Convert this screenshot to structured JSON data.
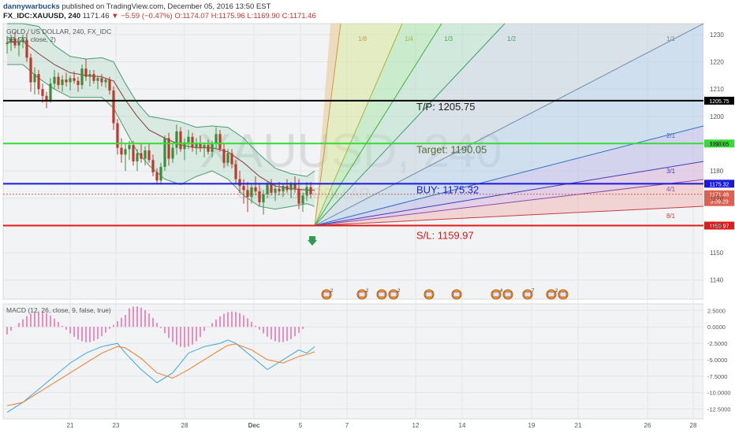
{
  "header": {
    "author": "dannywarbucks",
    "published_text": "published on TradingView.com, December 05, 2016 13:50 EST",
    "symbol": "FX_IDC:XAUUSD, 240",
    "last": "1171.46",
    "change": "−5.59 (−0.47%)",
    "ohlc_o": "O:1174.07",
    "ohlc_h": "H:1175.96",
    "ohlc_l": "L:1169.90",
    "ohlc_c": "C:1171.46"
  },
  "legend": {
    "main": "GOLD / US DOLLAR, 240, FX_IDC",
    "bb": "BB (20, close, 2)",
    "macd": "MACD (12, 26, close, 9, false, true)"
  },
  "watermark": {
    "symbol": "XAUUSD, 240",
    "name": "GOLD / US DOLLAR"
  },
  "colors": {
    "up": "#3a8d3a",
    "down": "#c0392b",
    "tp_line": "#000000",
    "target_line": "#33dd33",
    "buy_line": "#1a1adf",
    "sl_line": "#e31a1a",
    "macd_line": "#3ba6e8",
    "signal_line": "#f27d27",
    "histogram": "#e5479a",
    "bb": "#4a9a70"
  },
  "chart_data": [
    {
      "type": "candlestick",
      "name": "GOLD / US DOLLAR, 240, FX_IDC",
      "ylim": [
        1133,
        1234
      ],
      "y_ticks": [
        1140,
        1150,
        1160,
        1170,
        1180,
        1190,
        1200,
        1210,
        1220,
        1230
      ],
      "x_ticks": [
        "21",
        "23",
        "28",
        "Dec",
        "5",
        "7",
        "12",
        "14",
        "19",
        "21",
        "26",
        "28"
      ],
      "candles": [
        [
          1226.5,
          1229.5,
          1223,
          1227
        ],
        [
          1227,
          1230,
          1224,
          1228.5
        ],
        [
          1228.5,
          1231,
          1225,
          1226
        ],
        [
          1226,
          1229,
          1222,
          1227.5
        ],
        [
          1227.5,
          1230,
          1225,
          1228
        ],
        [
          1228,
          1230.5,
          1220,
          1221.5
        ],
        [
          1221.5,
          1223,
          1209,
          1212.5
        ],
        [
          1212.5,
          1218,
          1208,
          1215.5
        ],
        [
          1215.5,
          1217,
          1208,
          1210
        ],
        [
          1210,
          1212,
          1205,
          1207.5
        ],
        [
          1207.5,
          1209,
          1203,
          1206
        ],
        [
          1206,
          1214,
          1205,
          1212
        ],
        [
          1212,
          1217,
          1210,
          1214.5
        ],
        [
          1214.5,
          1216,
          1210,
          1211.5
        ],
        [
          1211.5,
          1215,
          1209,
          1213.5
        ],
        [
          1213.5,
          1216,
          1211,
          1212.5
        ],
        [
          1212.5,
          1215,
          1209.5,
          1214
        ],
        [
          1214,
          1216.5,
          1212,
          1213
        ],
        [
          1213,
          1214.5,
          1209,
          1211.5
        ],
        [
          1211.5,
          1219,
          1210,
          1217.5
        ],
        [
          1217.5,
          1221,
          1213,
          1214.5
        ],
        [
          1214.5,
          1217,
          1211,
          1215.5
        ],
        [
          1215.5,
          1217,
          1212,
          1213
        ],
        [
          1213,
          1215,
          1210,
          1214
        ],
        [
          1214,
          1215.5,
          1211,
          1212.5
        ],
        [
          1212.5,
          1214,
          1210.5,
          1213.5
        ],
        [
          1213.5,
          1214.5,
          1208,
          1209.5
        ],
        [
          1209.5,
          1211,
          1195,
          1197.5
        ],
        [
          1197.5,
          1199,
          1186,
          1188.5
        ],
        [
          1188.5,
          1192,
          1183,
          1186
        ],
        [
          1186,
          1190,
          1180,
          1188
        ],
        [
          1188,
          1191,
          1184,
          1189.5
        ],
        [
          1189.5,
          1191,
          1182,
          1183.5
        ],
        [
          1183.5,
          1188,
          1180,
          1186.5
        ],
        [
          1186.5,
          1190,
          1183,
          1184.5
        ],
        [
          1184.5,
          1189,
          1182,
          1187.5
        ],
        [
          1187.5,
          1190,
          1183,
          1184
        ],
        [
          1184,
          1186,
          1178,
          1179.5
        ],
        [
          1179.5,
          1181,
          1175,
          1176.5
        ],
        [
          1176.5,
          1183,
          1175,
          1181.5
        ],
        [
          1181.5,
          1193,
          1180,
          1192
        ],
        [
          1192,
          1194,
          1182,
          1184.5
        ],
        [
          1184.5,
          1190,
          1183,
          1188.5
        ],
        [
          1188.5,
          1197,
          1186,
          1194.5
        ],
        [
          1194.5,
          1196,
          1187,
          1188
        ],
        [
          1188,
          1192,
          1184,
          1190.5
        ],
        [
          1190.5,
          1195,
          1188,
          1192.5
        ],
        [
          1192.5,
          1194,
          1187,
          1188.5
        ],
        [
          1188.5,
          1192,
          1186,
          1190
        ],
        [
          1190,
          1193,
          1187,
          1188.5
        ],
        [
          1188.5,
          1190.5,
          1185,
          1189.5
        ],
        [
          1189.5,
          1191.5,
          1186,
          1187
        ],
        [
          1187,
          1191,
          1185,
          1190
        ],
        [
          1190,
          1196,
          1188,
          1193.5
        ],
        [
          1193.5,
          1195,
          1187,
          1188
        ],
        [
          1188,
          1190,
          1181,
          1183
        ],
        [
          1183,
          1188,
          1182,
          1186.5
        ],
        [
          1186.5,
          1188,
          1181,
          1182.5
        ],
        [
          1182.5,
          1184,
          1175,
          1177
        ],
        [
          1177,
          1180,
          1172,
          1174.5
        ],
        [
          1174.5,
          1177,
          1168,
          1173
        ],
        [
          1173,
          1176,
          1165,
          1170.5
        ],
        [
          1170.5,
          1175,
          1168,
          1174
        ],
        [
          1174,
          1178,
          1171,
          1172.5
        ],
        [
          1172.5,
          1175,
          1167,
          1168.5
        ],
        [
          1168.5,
          1173,
          1164,
          1171.5
        ],
        [
          1171.5,
          1176,
          1170,
          1175
        ],
        [
          1175,
          1177,
          1171,
          1172
        ],
        [
          1172,
          1175,
          1169,
          1173.5
        ],
        [
          1173.5,
          1176,
          1171,
          1172.5
        ],
        [
          1172.5,
          1175.5,
          1170.5,
          1174.5
        ],
        [
          1174.5,
          1177,
          1172,
          1173
        ],
        [
          1173,
          1176,
          1170,
          1175.5
        ],
        [
          1175.5,
          1178,
          1172,
          1173.5
        ],
        [
          1173.5,
          1177,
          1166,
          1168
        ],
        [
          1168,
          1172,
          1165,
          1171
        ],
        [
          1171,
          1176,
          1169,
          1174.07
        ],
        [
          1174.07,
          1175.96,
          1169.9,
          1171.46
        ]
      ],
      "bollinger_upper": [
        [
          0,
          1234
        ],
        [
          4,
          1234
        ],
        [
          8,
          1233
        ],
        [
          12,
          1226
        ],
        [
          16,
          1222
        ],
        [
          20,
          1221
        ],
        [
          24,
          1221.5
        ],
        [
          27,
          1220
        ],
        [
          30,
          1212
        ],
        [
          33,
          1205
        ],
        [
          36,
          1200
        ],
        [
          40,
          1199
        ],
        [
          44,
          1198
        ],
        [
          48,
          1196
        ],
        [
          52,
          1196.5
        ],
        [
          56,
          1196
        ],
        [
          60,
          1192
        ],
        [
          64,
          1186
        ],
        [
          68,
          1181
        ],
        [
          72,
          1179
        ],
        [
          76,
          1178
        ],
        [
          78,
          1180
        ]
      ],
      "bollinger_middle": [
        [
          0,
          1227
        ],
        [
          4,
          1227.5
        ],
        [
          8,
          1223
        ],
        [
          12,
          1219
        ],
        [
          16,
          1216
        ],
        [
          20,
          1215
        ],
        [
          24,
          1214.5
        ],
        [
          27,
          1213
        ],
        [
          30,
          1206
        ],
        [
          33,
          1200
        ],
        [
          36,
          1195
        ],
        [
          40,
          1192
        ],
        [
          44,
          1189.5
        ],
        [
          48,
          1188.5
        ],
        [
          52,
          1188.5
        ],
        [
          56,
          1187
        ],
        [
          60,
          1183
        ],
        [
          64,
          1178
        ],
        [
          68,
          1174.5
        ],
        [
          72,
          1173.5
        ],
        [
          76,
          1173
        ],
        [
          78,
          1173
        ]
      ],
      "bollinger_lower": [
        [
          0,
          1219
        ],
        [
          4,
          1219
        ],
        [
          8,
          1214
        ],
        [
          12,
          1210
        ],
        [
          16,
          1207
        ],
        [
          20,
          1207
        ],
        [
          24,
          1207
        ],
        [
          27,
          1203
        ],
        [
          30,
          1195
        ],
        [
          33,
          1187
        ],
        [
          36,
          1182
        ],
        [
          40,
          1177
        ],
        [
          44,
          1175
        ],
        [
          48,
          1178
        ],
        [
          52,
          1180
        ],
        [
          56,
          1177
        ],
        [
          60,
          1171
        ],
        [
          64,
          1167
        ],
        [
          68,
          1166
        ],
        [
          72,
          1167
        ],
        [
          76,
          1168
        ],
        [
          78,
          1167
        ]
      ],
      "levels": [
        {
          "label": "T/P: 1205.75",
          "value": 1205.75,
          "axis_label": "1205.75",
          "color": "#000000"
        },
        {
          "label": "Target: 1190.05",
          "value": 1190.05,
          "axis_label": "1190.05",
          "color": "#33dd33"
        },
        {
          "label": "BUY: 1175.32",
          "value": 1175.32,
          "axis_label": "1175.32",
          "color": "#1a1adf"
        },
        {
          "label": "S/L: 1159.97",
          "value": 1159.97,
          "axis_label": "1159.97",
          "color": "#e31a1a"
        }
      ],
      "price_marker": {
        "value": 1171.46,
        "label": "1171.46",
        "countdown": "3:09:29"
      },
      "gann_fan": {
        "origin_bar": 78,
        "origin_price": 1159.97,
        "lines": [
          {
            "label": "1/8",
            "color": "#c79a4a"
          },
          {
            "label": "1/4",
            "color": "#a6b83a"
          },
          {
            "label": "1/3",
            "color": "#3fb13f"
          },
          {
            "label": "1/2",
            "color": "#3a9e6a"
          },
          {
            "label": "1/1",
            "color": "#6f8ca6"
          },
          {
            "label": "2/1",
            "color": "#2d6fc4"
          },
          {
            "label": "3/1",
            "color": "#3d3db5"
          },
          {
            "label": "4/1",
            "color": "#8a4aa6"
          },
          {
            "label": "8/1",
            "color": "#c24040"
          }
        ]
      }
    },
    {
      "type": "macd",
      "name": "MACD (12, 26, close, 9, false, true)",
      "ylim": [
        -14,
        3.5
      ],
      "y_ticks": [
        "2.5000",
        "0.0000",
        "-2.5000",
        "-5.0000",
        "-7.5000",
        "-10.0000",
        "-12.5000"
      ],
      "macd": [
        [
          0,
          -13
        ],
        [
          4,
          -11.5
        ],
        [
          8,
          -9.5
        ],
        [
          12,
          -7.5
        ],
        [
          16,
          -5.5
        ],
        [
          20,
          -4
        ],
        [
          24,
          -3
        ],
        [
          28,
          -2.5
        ],
        [
          30,
          -4
        ],
        [
          34,
          -6.5
        ],
        [
          38,
          -8.5
        ],
        [
          42,
          -7
        ],
        [
          46,
          -4
        ],
        [
          50,
          -3
        ],
        [
          54,
          -2.5
        ],
        [
          56,
          -2
        ],
        [
          58,
          -2.5
        ],
        [
          62,
          -4.5
        ],
        [
          66,
          -6.5
        ],
        [
          70,
          -5
        ],
        [
          74,
          -3.5
        ],
        [
          76,
          -4
        ],
        [
          78,
          -3
        ]
      ],
      "signal": [
        [
          0,
          -12
        ],
        [
          4,
          -11.5
        ],
        [
          8,
          -10
        ],
        [
          12,
          -8.5
        ],
        [
          16,
          -7
        ],
        [
          20,
          -5.5
        ],
        [
          24,
          -4
        ],
        [
          28,
          -3
        ],
        [
          30,
          -3.2
        ],
        [
          34,
          -4.8
        ],
        [
          38,
          -7
        ],
        [
          42,
          -7.8
        ],
        [
          46,
          -6.5
        ],
        [
          50,
          -5
        ],
        [
          54,
          -3.5
        ],
        [
          56,
          -2.8
        ],
        [
          58,
          -2.6
        ],
        [
          62,
          -3.5
        ],
        [
          66,
          -5
        ],
        [
          70,
          -5.5
        ],
        [
          74,
          -4.5
        ],
        [
          76,
          -4.2
        ],
        [
          78,
          -3.8
        ]
      ],
      "histogram_bars": 76
    }
  ],
  "event_icons": [
    {
      "bar": 81,
      "count": "2"
    },
    {
      "bar": 90,
      "count": "2"
    },
    {
      "bar": 95,
      "count": ""
    },
    {
      "bar": 98,
      "count": "2"
    },
    {
      "bar": 107,
      "count": ""
    },
    {
      "bar": 114,
      "count": ""
    },
    {
      "bar": 124,
      "count": "4"
    },
    {
      "bar": 127,
      "count": ""
    },
    {
      "bar": 132,
      "count": "7"
    },
    {
      "bar": 138,
      "count": "2"
    },
    {
      "bar": 141,
      "count": ""
    }
  ]
}
